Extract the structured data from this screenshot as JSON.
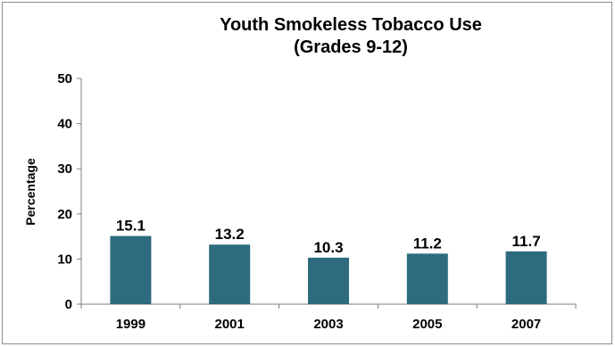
{
  "chart_data": {
    "type": "bar",
    "title_lines": [
      "Youth Smokeless Tobacco Use",
      "(Grades 9-12)"
    ],
    "xlabel": "",
    "ylabel": "Percentage",
    "categories": [
      "1999",
      "2001",
      "2003",
      "2005",
      "2007"
    ],
    "values": [
      15.1,
      13.2,
      10.3,
      11.2,
      11.7
    ],
    "data_labels": [
      "15.1",
      "13.2",
      "10.3",
      "11.2",
      "11.7"
    ],
    "ylim": [
      0,
      50
    ],
    "yticks": [
      0,
      10,
      20,
      30,
      40,
      50
    ],
    "grid": false,
    "legend": "none",
    "bar_color": "#2e6b7e"
  }
}
